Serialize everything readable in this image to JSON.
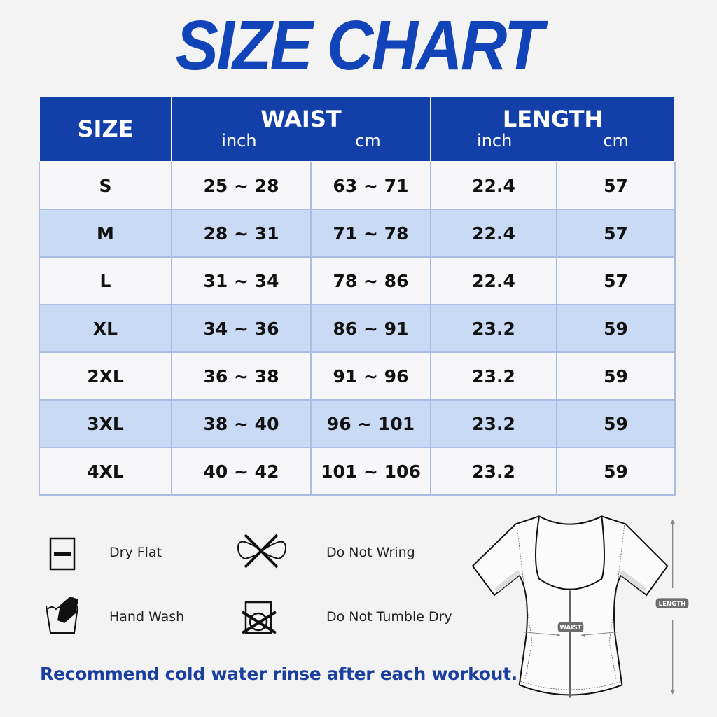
{
  "title": "SIZE CHART",
  "headers": {
    "size": "SIZE",
    "waist": "WAIST",
    "length": "LENGTH",
    "inch": "inch",
    "cm": "cm"
  },
  "rows": [
    {
      "size": "S",
      "waist_in": "25 ~ 28",
      "waist_cm": "63 ~ 71",
      "length_in": "22.4",
      "length_cm": "57"
    },
    {
      "size": "M",
      "waist_in": "28 ~ 31",
      "waist_cm": "71 ~ 78",
      "length_in": "22.4",
      "length_cm": "57"
    },
    {
      "size": "L",
      "waist_in": "31 ~ 34",
      "waist_cm": "78 ~ 86",
      "length_in": "22.4",
      "length_cm": "57"
    },
    {
      "size": "XL",
      "waist_in": "34 ~ 36",
      "waist_cm": "86 ~ 91",
      "length_in": "23.2",
      "length_cm": "59"
    },
    {
      "size": "2XL",
      "waist_in": "36 ~ 38",
      "waist_cm": "91 ~ 96",
      "length_in": "23.2",
      "length_cm": "59"
    },
    {
      "size": "3XL",
      "waist_in": "38 ~ 40",
      "waist_cm": "96 ~ 101",
      "length_in": "23.2",
      "length_cm": "59"
    },
    {
      "size": "4XL",
      "waist_in": "40 ~ 42",
      "waist_cm": "101 ~ 106",
      "length_in": "23.2",
      "length_cm": "59"
    }
  ],
  "care": {
    "dry_flat": "Dry Flat",
    "do_not_wring": "Do Not Wring",
    "hand_wash": "Hand Wash",
    "do_not_tumble_dry": "Do Not Tumble Dry"
  },
  "note": "Recommend cold water rinse after each workout.",
  "diagram": {
    "waist": "WAIST",
    "length": "LENGTH"
  },
  "colors": {
    "header": "#1340a8",
    "alt_row": "#c9daf5",
    "title": "#1144b8"
  }
}
